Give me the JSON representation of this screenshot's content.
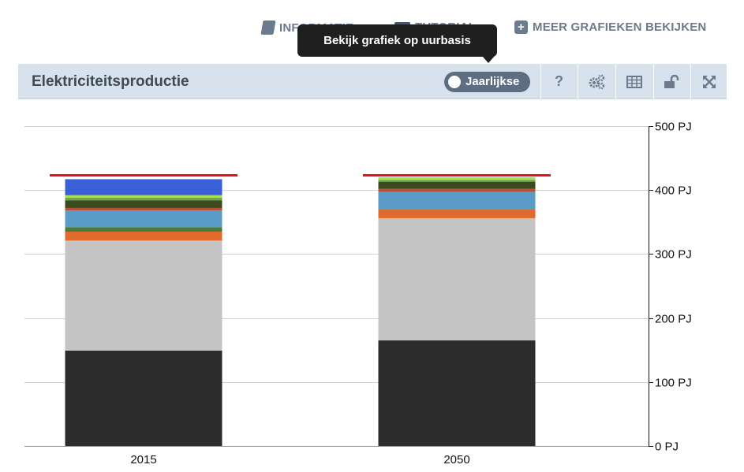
{
  "toplinks": {
    "info": "INFORMATIE",
    "tutorial": "TUTORIAL",
    "more": "MEER GRAFIEKEN BEKIJKEN"
  },
  "tooltip": "Bekijk grafiek op uurbasis",
  "header": {
    "title": "Elektriciteitsproductie",
    "toggle_label": "Jaarlijkse",
    "help": "?"
  },
  "icons": {
    "info": "book-icon",
    "tutorial": "video-icon",
    "more": "plus-icon",
    "settings": "gears-icon",
    "table": "table-icon",
    "lock": "lock-icon",
    "expand": "expand-icon"
  },
  "colors": {
    "header_bg": "#d7e2ed",
    "tooltip_bg": "#1f1f1f",
    "target_line": "#e8131a"
  },
  "chart_data": {
    "type": "bar",
    "stacked": true,
    "categories": [
      "2015",
      "2050"
    ],
    "ylim": [
      0,
      500
    ],
    "yticks": [
      0,
      100,
      200,
      300,
      400,
      500
    ],
    "ytick_labels": [
      "0 PJ",
      "100 PJ",
      "200 PJ",
      "300 PJ",
      "400 PJ",
      "500 PJ"
    ],
    "yaxis_position": "right",
    "grid": true,
    "legend": false,
    "series": [
      {
        "color": "#2c2c2c",
        "values": [
          149,
          165
        ]
      },
      {
        "color": "#c4c4c4",
        "values": [
          172,
          191
        ]
      },
      {
        "color": "#e06b2c",
        "values": [
          14,
          14
        ]
      },
      {
        "color": "#4c7a3a",
        "values": [
          7,
          0
        ]
      },
      {
        "color": "#5a9bc8",
        "values": [
          26,
          27
        ]
      },
      {
        "color": "#b5503a",
        "values": [
          4,
          5
        ]
      },
      {
        "color": "#3d4a1c",
        "values": [
          12,
          11
        ]
      },
      {
        "color": "#6aa84f",
        "values": [
          4,
          3
        ]
      },
      {
        "color": "#a7e04c",
        "values": [
          4,
          4
        ]
      },
      {
        "color": "#3a5fd9",
        "values": [
          25,
          0
        ]
      }
    ],
    "target_line": {
      "color": "#e8131a",
      "values": [
        423,
        423
      ]
    }
  }
}
